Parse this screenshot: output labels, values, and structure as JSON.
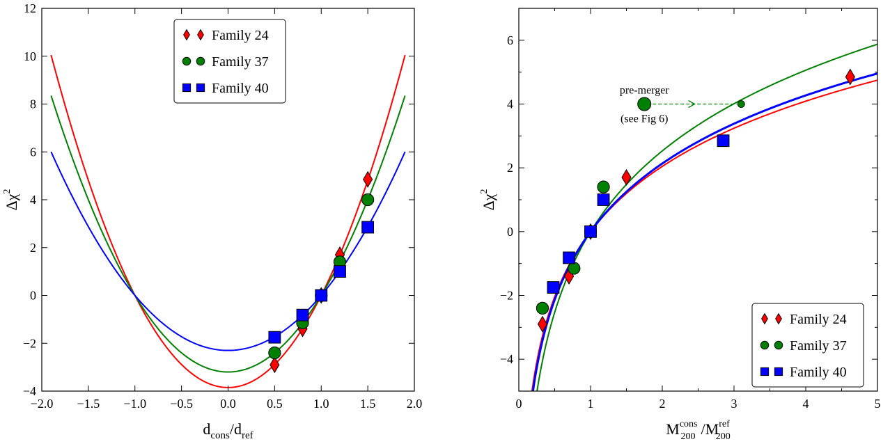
{
  "chart_data": [
    {
      "type": "scatter",
      "xlabel": {
        "base": "d",
        "sub": "cons",
        "mid": "/d",
        "sub2": "ref"
      },
      "ylabel": {
        "main": "Δχ",
        "sup": "2"
      },
      "xlim": [
        -2.0,
        2.0
      ],
      "ylim": [
        -4,
        12
      ],
      "xticks": [
        -2.0,
        -1.5,
        -1.0,
        -0.5,
        0.0,
        0.5,
        1.0,
        1.5,
        2.0
      ],
      "xtick_labels": [
        "−2.0",
        "−1.5",
        "−1.0",
        "−0.5",
        "0.0",
        "0.5",
        "1.0",
        "1.5",
        "2.0"
      ],
      "yticks": [
        -4,
        -2,
        0,
        2,
        4,
        6,
        8,
        10,
        12
      ],
      "ytick_labels": [
        "−4",
        "−2",
        "0",
        "2",
        "4",
        "6",
        "8",
        "10",
        "12"
      ],
      "legend_position": "top-center",
      "series": [
        {
          "name": "Family 24",
          "marker": "diamond",
          "color": "#ff0000",
          "x": [
            0.5,
            0.8,
            1.0,
            1.2,
            1.5
          ],
          "y": [
            -2.9,
            -1.4,
            0.0,
            1.7,
            4.85
          ],
          "curve": {
            "kind": "parabola",
            "a": 3.85,
            "min": -3.85,
            "x_range": [
              -1.9,
              1.9
            ]
          }
        },
        {
          "name": "Family 37",
          "marker": "circle",
          "color": "#008000",
          "x": [
            0.5,
            0.8,
            1.0,
            1.2,
            1.5
          ],
          "y": [
            -2.4,
            -1.15,
            0.0,
            1.4,
            4.0
          ],
          "curve": {
            "kind": "parabola",
            "a": 3.2,
            "min": -3.2,
            "x_range": [
              -1.9,
              1.9
            ]
          }
        },
        {
          "name": "Family 40",
          "marker": "square",
          "color": "#0000ff",
          "x": [
            0.5,
            0.8,
            1.0,
            1.2,
            1.5
          ],
          "y": [
            -1.75,
            -0.82,
            0.0,
            1.0,
            2.85
          ],
          "curve": {
            "kind": "parabola",
            "a": 2.3,
            "min": -2.3,
            "x_range": [
              -1.9,
              1.9
            ]
          }
        }
      ]
    },
    {
      "type": "scatter",
      "xlabel": {
        "base": "M",
        "sub": "200",
        "sup": "cons",
        "mid": "/M",
        "sub2": "200",
        "sup2": "ref"
      },
      "ylabel": {
        "main": "Δχ",
        "sup": "2"
      },
      "xlim": [
        0,
        5
      ],
      "ylim": [
        -5,
        7
      ],
      "xticks": [
        0,
        1,
        2,
        3,
        4,
        5
      ],
      "xtick_labels": [
        "0",
        "1",
        "2",
        "3",
        "4",
        "5"
      ],
      "yticks": [
        -4,
        -2,
        0,
        2,
        4,
        6
      ],
      "ytick_labels": [
        "−4",
        "−2",
        "0",
        "2",
        "4",
        "6"
      ],
      "legend_position": "lower-right",
      "series": [
        {
          "name": "Family 24",
          "marker": "diamond",
          "color": "#ff0000",
          "x": [
            0.33,
            0.7,
            1.0,
            1.5,
            4.62
          ],
          "y": [
            -2.9,
            -1.4,
            0.0,
            1.7,
            4.85
          ],
          "curve": {
            "kind": "log",
            "k": 2.95,
            "x_range": [
              0.15,
              5.0
            ]
          }
        },
        {
          "name": "Family 37",
          "marker": "circle",
          "color": "#008000",
          "x": [
            0.33,
            0.77,
            1.0,
            1.18
          ],
          "y": [
            -2.4,
            -1.15,
            0.0,
            1.4
          ],
          "curve": {
            "kind": "log",
            "k": 3.65,
            "x_range": [
              0.25,
              5.0
            ]
          }
        },
        {
          "name": "Family 40",
          "marker": "square",
          "color": "#0000ff",
          "x": [
            0.48,
            0.7,
            1.0,
            1.18,
            2.85
          ],
          "y": [
            -1.75,
            -0.82,
            0.0,
            1.0,
            2.85
          ],
          "curve": {
            "kind": "log",
            "k": 3.08,
            "x_range": [
              0.17,
              5.0
            ]
          }
        }
      ],
      "annotation": {
        "line1": "pre-merger",
        "line2": "(see Fig 6)",
        "from": [
          1.75,
          4.0
        ],
        "to": [
          3.1,
          4.0
        ],
        "color": "#008000"
      }
    }
  ]
}
